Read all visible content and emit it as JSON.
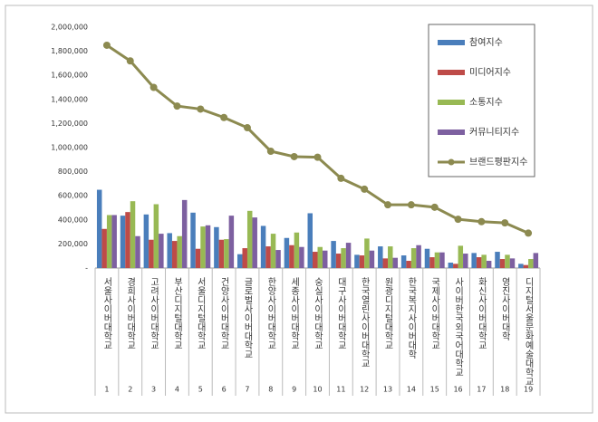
{
  "chart_data": {
    "type": "bar",
    "categories": [
      "서울사이버대학교",
      "경희사이버대학교",
      "고려사이버대학교",
      "부산디지털대학교",
      "서울디지털대학교",
      "건양사이버대학교",
      "글로벌사이버대학교",
      "한양사이버대학교",
      "세종사이버대학교",
      "숭실사이버대학교",
      "대구사이버대학교",
      "한국열린사이버대학교",
      "원광디지털대학교",
      "한국복지사이버대학",
      "국제사이버대학교",
      "사이버한국외국어대학교",
      "화신사이버대학교",
      "영진사이버대학",
      "디지털서울문화예술대학교"
    ],
    "ranks": [
      1,
      2,
      3,
      4,
      5,
      6,
      7,
      8,
      9,
      10,
      11,
      12,
      13,
      14,
      15,
      16,
      17,
      18,
      19
    ],
    "series": [
      {
        "name": "참여지수",
        "color": "#4a7ebb",
        "values": [
          650000,
          435000,
          445000,
          290000,
          460000,
          340000,
          115000,
          350000,
          250000,
          455000,
          225000,
          110000,
          180000,
          105000,
          160000,
          45000,
          125000,
          135000,
          35000
        ]
      },
      {
        "name": "미디어지수",
        "color": "#be4b48",
        "values": [
          325000,
          465000,
          235000,
          225000,
          160000,
          235000,
          165000,
          180000,
          190000,
          135000,
          120000,
          105000,
          80000,
          60000,
          90000,
          35000,
          90000,
          75000,
          25000
        ]
      },
      {
        "name": "소통지수",
        "color": "#98b954",
        "values": [
          440000,
          555000,
          530000,
          265000,
          345000,
          240000,
          475000,
          285000,
          295000,
          175000,
          165000,
          245000,
          180000,
          165000,
          130000,
          185000,
          110000,
          110000,
          75000
        ]
      },
      {
        "name": "커뮤니티지수",
        "color": "#7d60a0",
        "values": [
          440000,
          265000,
          285000,
          565000,
          355000,
          435000,
          420000,
          150000,
          175000,
          145000,
          210000,
          145000,
          85000,
          190000,
          130000,
          120000,
          60000,
          80000,
          125000
        ]
      },
      {
        "name": "브랜드평판지수",
        "color": "#8c8a50",
        "type": "line",
        "values": [
          1850000,
          1720000,
          1500000,
          1345000,
          1320000,
          1250000,
          1165000,
          970000,
          925000,
          920000,
          745000,
          655000,
          525000,
          525000,
          505000,
          405000,
          385000,
          375000,
          290000
        ]
      }
    ],
    "ylim": [
      0,
      2000000
    ],
    "yticks": [
      {
        "value": 0,
        "label": "-"
      },
      {
        "value": 200000,
        "label": "200,000"
      },
      {
        "value": 400000,
        "label": "400,000"
      },
      {
        "value": 600000,
        "label": "600,000"
      },
      {
        "value": 800000,
        "label": "800,000"
      },
      {
        "value": 1000000,
        "label": "1,000,000"
      },
      {
        "value": 1200000,
        "label": "1,200,000"
      },
      {
        "value": 1400000,
        "label": "1,400,000"
      },
      {
        "value": 1600000,
        "label": "1,600,000"
      },
      {
        "value": 1800000,
        "label": "1,800,000"
      },
      {
        "value": 2000000,
        "label": "2,000,000"
      }
    ],
    "legend": "top-right"
  }
}
